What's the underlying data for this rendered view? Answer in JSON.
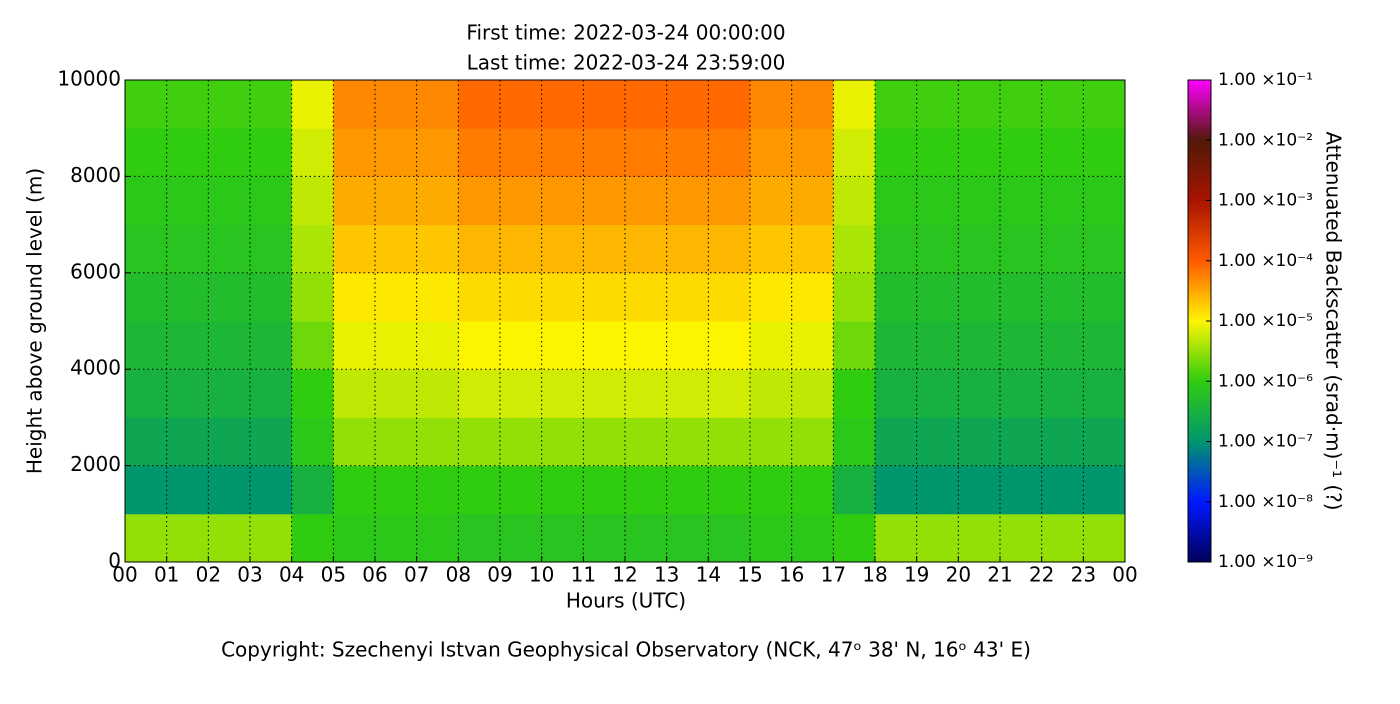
{
  "chart_data": {
    "type": "heatmap",
    "title": "First time: 2022-03-24 00:00:00",
    "subtitle": "Last time: 2022-03-24 23:59:00",
    "x_label": "Hours (UTC)",
    "y_label": "Height above ground level (m)",
    "colorbar_label": "Attenuated Backscatter (srad·m)⁻¹ (?)",
    "annotation": "Copyright: Szechenyi Istvan Geophysical Observatory (NCK, 47ᵒ  38' N, 16ᵒ  43' E)",
    "x_bins": [
      0,
      1,
      2,
      3,
      4,
      5,
      6,
      7,
      8,
      9,
      10,
      11,
      12,
      13,
      14,
      15,
      16,
      17,
      18,
      19,
      20,
      21,
      22,
      23,
      24
    ],
    "y_bins": [
      0,
      1000,
      2000,
      3000,
      4000,
      5000,
      6000,
      7000,
      8000,
      9000,
      10000
    ],
    "z": [
      [
        3e-06,
        3e-06,
        3e-06,
        3e-06,
        1e-06,
        8e-07,
        8e-07,
        8e-07,
        7e-07,
        7e-07,
        7e-07,
        7e-07,
        7e-07,
        7e-07,
        7e-07,
        8e-07,
        8e-07,
        1e-06,
        3e-06,
        3e-06,
        3e-06,
        3e-06,
        3e-06,
        3e-06
      ],
      [
        1e-07,
        1e-07,
        1e-07,
        1e-07,
        3e-07,
        1e-06,
        1e-06,
        1e-06,
        1e-06,
        1e-06,
        1e-06,
        1e-06,
        1e-06,
        1e-06,
        1e-06,
        1e-06,
        1e-06,
        3e-07,
        1e-07,
        1e-07,
        1e-07,
        1e-07,
        1e-07,
        1e-07
      ],
      [
        2e-07,
        2e-07,
        2e-07,
        2e-07,
        8e-07,
        3e-06,
        3e-06,
        3e-06,
        3e-06,
        3e-06,
        3e-06,
        3e-06,
        3e-06,
        3e-06,
        3e-06,
        3e-06,
        3e-06,
        8e-07,
        2e-07,
        2e-07,
        2e-07,
        2e-07,
        2e-07,
        2e-07
      ],
      [
        3e-07,
        3e-07,
        3e-07,
        3e-07,
        1e-06,
        5e-06,
        5e-06,
        5e-06,
        6e-06,
        6e-06,
        6e-06,
        6e-06,
        6e-06,
        6e-06,
        6e-06,
        5e-06,
        5e-06,
        1e-06,
        3e-07,
        3e-07,
        3e-07,
        3e-07,
        3e-07,
        3e-07
      ],
      [
        4e-07,
        4e-07,
        4e-07,
        4e-07,
        2e-06,
        8e-06,
        8e-06,
        8e-06,
        1e-05,
        1e-05,
        1e-05,
        1e-05,
        1e-05,
        1e-05,
        1e-05,
        8e-06,
        8e-06,
        2e-06,
        4e-07,
        4e-07,
        4e-07,
        4e-07,
        4e-07,
        4e-07
      ],
      [
        5e-07,
        5e-07,
        5e-07,
        5e-07,
        3e-06,
        1.2e-05,
        1.2e-05,
        1.2e-05,
        1.5e-05,
        1.5e-05,
        1.5e-05,
        1.5e-05,
        1.5e-05,
        1.5e-05,
        1.5e-05,
        1.2e-05,
        1.2e-05,
        3e-06,
        5e-07,
        5e-07,
        5e-07,
        5e-07,
        5e-07,
        5e-07
      ],
      [
        7e-07,
        7e-07,
        7e-07,
        7e-07,
        4e-06,
        2e-05,
        2e-05,
        2e-05,
        2.5e-05,
        2.5e-05,
        2.5e-05,
        2.5e-05,
        2.5e-05,
        2.5e-05,
        2.5e-05,
        2e-05,
        2e-05,
        4e-06,
        7e-07,
        7e-07,
        7e-07,
        7e-07,
        7e-07,
        7e-07
      ],
      [
        8e-07,
        8e-07,
        8e-07,
        8e-07,
        5e-06,
        3e-05,
        3e-05,
        3e-05,
        4e-05,
        4e-05,
        4e-05,
        4e-05,
        4e-05,
        4e-05,
        4e-05,
        3e-05,
        3e-05,
        5e-06,
        8e-07,
        8e-07,
        8e-07,
        8e-07,
        8e-07,
        8e-07
      ],
      [
        1e-06,
        1e-06,
        1e-06,
        1e-06,
        6e-06,
        4e-05,
        4e-05,
        4e-05,
        6e-05,
        6e-05,
        6e-05,
        6e-05,
        6e-05,
        6e-05,
        6e-05,
        4e-05,
        4e-05,
        6e-06,
        1e-06,
        1e-06,
        1e-06,
        1e-06,
        1e-06,
        1e-06
      ],
      [
        1.2e-06,
        1.2e-06,
        1.2e-06,
        1.2e-06,
        8e-06,
        5e-05,
        5e-05,
        5e-05,
        8e-05,
        8e-05,
        8e-05,
        8e-05,
        8e-05,
        8e-05,
        8e-05,
        5e-05,
        5e-05,
        8e-06,
        1.2e-06,
        1.2e-06,
        1.2e-06,
        1.2e-06,
        1.2e-06,
        1.2e-06
      ]
    ],
    "xlim": [
      0,
      24
    ],
    "xticks": [
      {
        "value": 0,
        "label": "00"
      },
      {
        "value": 1,
        "label": "01"
      },
      {
        "value": 2,
        "label": "02"
      },
      {
        "value": 3,
        "label": "03"
      },
      {
        "value": 4,
        "label": "04"
      },
      {
        "value": 5,
        "label": "05"
      },
      {
        "value": 6,
        "label": "06"
      },
      {
        "value": 7,
        "label": "07"
      },
      {
        "value": 8,
        "label": "08"
      },
      {
        "value": 9,
        "label": "09"
      },
      {
        "value": 10,
        "label": "10"
      },
      {
        "value": 11,
        "label": "11"
      },
      {
        "value": 12,
        "label": "12"
      },
      {
        "value": 13,
        "label": "13"
      },
      {
        "value": 14,
        "label": "14"
      },
      {
        "value": 15,
        "label": "15"
      },
      {
        "value": 16,
        "label": "16"
      },
      {
        "value": 17,
        "label": "17"
      },
      {
        "value": 18,
        "label": "18"
      },
      {
        "value": 19,
        "label": "19"
      },
      {
        "value": 20,
        "label": "20"
      },
      {
        "value": 21,
        "label": "21"
      },
      {
        "value": 22,
        "label": "22"
      },
      {
        "value": 23,
        "label": "23"
      },
      {
        "value": 24,
        "label": "00"
      }
    ],
    "ylim": [
      0,
      10000
    ],
    "yticks": [
      0,
      2000,
      4000,
      6000,
      8000,
      10000
    ],
    "grid": true,
    "color_scale": "log",
    "clim": [
      1e-09,
      0.1
    ],
    "cticks": [
      {
        "value": 1e-09,
        "label": "1.00 ×10⁻⁹"
      },
      {
        "value": 1e-08,
        "label": "1.00 ×10⁻⁸"
      },
      {
        "value": 1e-07,
        "label": "1.00 ×10⁻⁷"
      },
      {
        "value": 1e-06,
        "label": "1.00 ×10⁻⁶"
      },
      {
        "value": 1e-05,
        "label": "1.00 ×10⁻⁵"
      },
      {
        "value": 0.0001,
        "label": "1.00 ×10⁻⁴"
      },
      {
        "value": 0.001,
        "label": "1.00 ×10⁻³"
      },
      {
        "value": 0.01,
        "label": "1.00 ×10⁻²"
      },
      {
        "value": 0.1,
        "label": "1.00 ×10⁻¹"
      }
    ],
    "colormap": [
      "#00005a",
      "#0018ff",
      "#00966e",
      "#30cc10",
      "#fdf500",
      "#ff5a00",
      "#a81400",
      "#521808",
      "#ff00ff"
    ]
  }
}
